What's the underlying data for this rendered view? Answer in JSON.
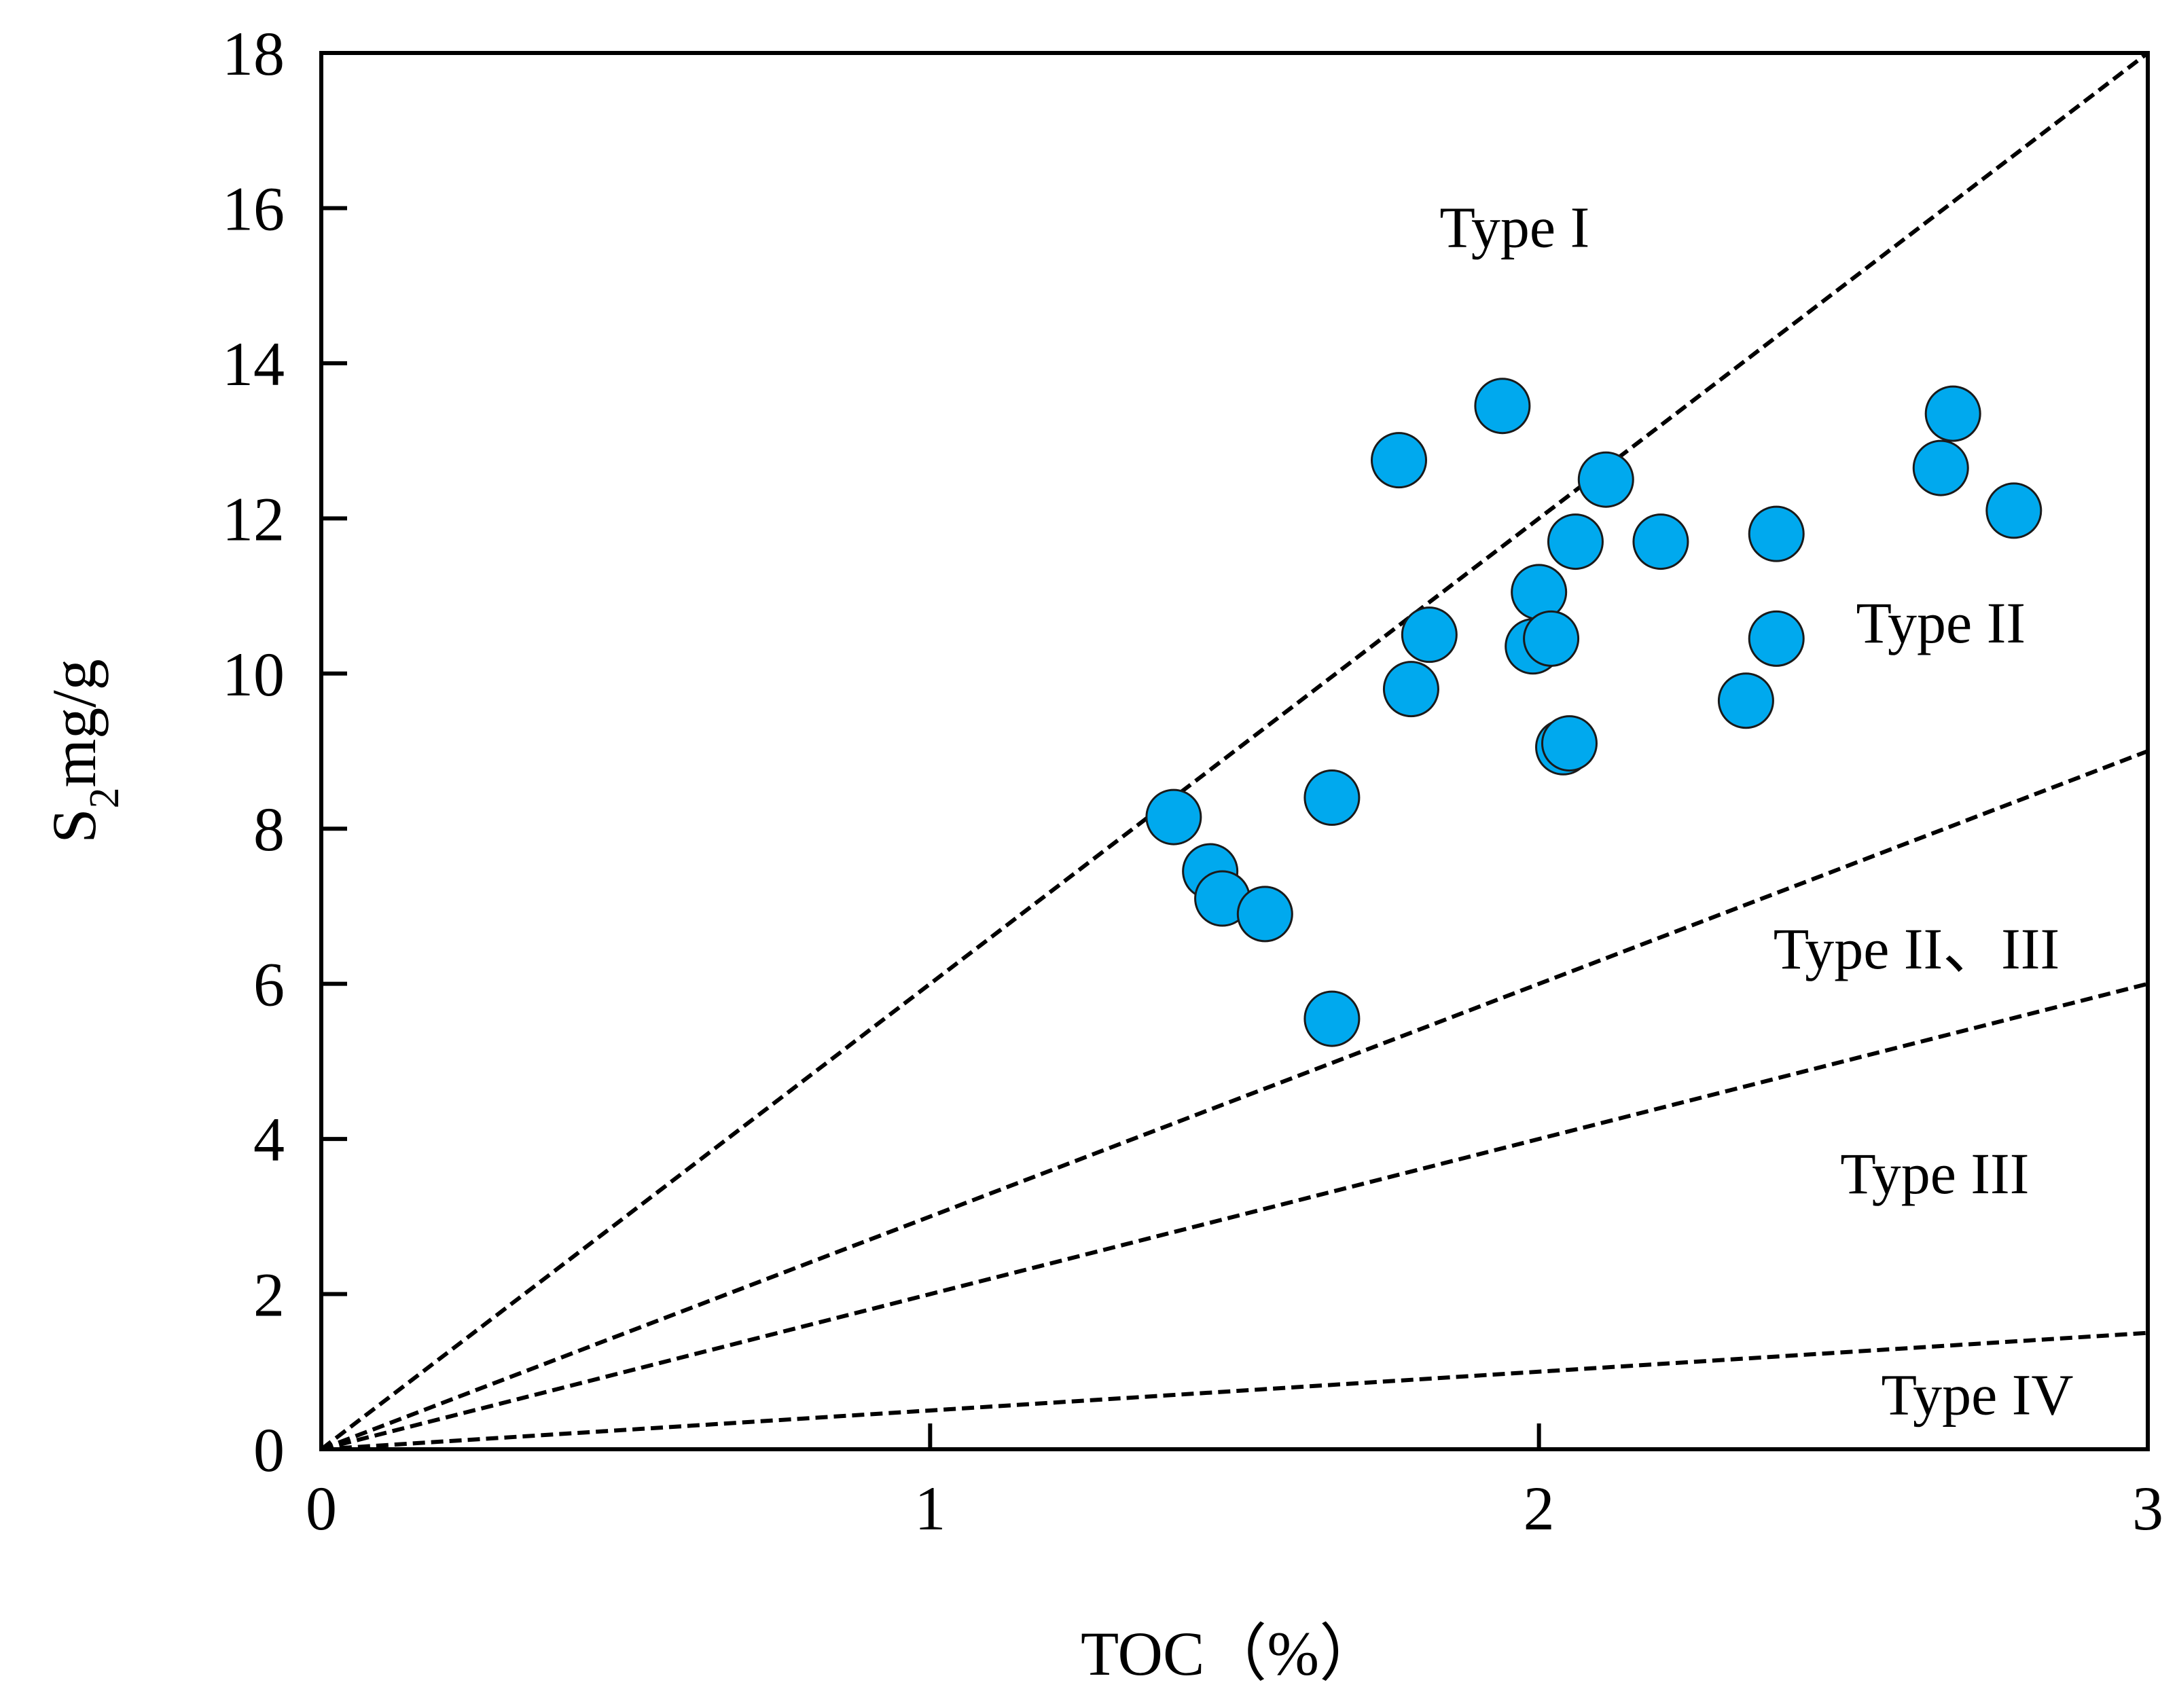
{
  "chart_data": {
    "type": "scatter",
    "title": "",
    "xlabel": "TOC（%）",
    "ylabel": {
      "main": "S",
      "subscript": "2",
      "suffix": "mg/g"
    },
    "xlim": [
      0,
      3
    ],
    "ylim": [
      0,
      18
    ],
    "xticks": [
      "0",
      "1",
      "2",
      "3"
    ],
    "yticks": [
      "0",
      "2",
      "4",
      "6",
      "8",
      "10",
      "12",
      "14",
      "16",
      "18"
    ],
    "grid": false,
    "colors": {
      "point_fill": "#00A9EE",
      "point_stroke": "#1a1a1a",
      "line": "#000000",
      "axis": "#000000"
    },
    "reference_lines": [
      {
        "name": "type-I-II-boundary",
        "slope": 6
      },
      {
        "name": "type-II-II-III-boundary",
        "slope": 3
      },
      {
        "name": "type-II-III-III-boundary",
        "slope": 2
      },
      {
        "name": "type-III-IV-boundary",
        "slope": 0.5
      }
    ],
    "region_labels": [
      {
        "name": "type-i-label",
        "text": "Type I",
        "x": 1.96,
        "y": 15.5
      },
      {
        "name": "type-ii-label",
        "text": "Type II",
        "x": 2.66,
        "y": 10.4
      },
      {
        "name": "type-ii-iii-label",
        "text": "Type II、III",
        "x": 2.62,
        "y": 6.2
      },
      {
        "name": "type-iii-label",
        "text": "Type III",
        "x": 2.65,
        "y": 3.3
      },
      {
        "name": "type-iv-label",
        "text": "Type IV",
        "x": 2.72,
        "y": 0.45
      }
    ],
    "series": [
      {
        "name": "samples",
        "points": [
          {
            "x": 1.4,
            "y": 8.15
          },
          {
            "x": 1.46,
            "y": 7.45
          },
          {
            "x": 1.48,
            "y": 7.1
          },
          {
            "x": 1.55,
            "y": 6.9
          },
          {
            "x": 1.66,
            "y": 8.4
          },
          {
            "x": 1.66,
            "y": 5.55
          },
          {
            "x": 1.77,
            "y": 12.75
          },
          {
            "x": 1.79,
            "y": 9.8
          },
          {
            "x": 1.82,
            "y": 10.5
          },
          {
            "x": 1.94,
            "y": 13.45
          },
          {
            "x": 1.99,
            "y": 10.35
          },
          {
            "x": 2.0,
            "y": 11.05
          },
          {
            "x": 2.02,
            "y": 10.45
          },
          {
            "x": 2.04,
            "y": 9.05
          },
          {
            "x": 2.05,
            "y": 9.1
          },
          {
            "x": 2.06,
            "y": 11.7
          },
          {
            "x": 2.11,
            "y": 12.5
          },
          {
            "x": 2.2,
            "y": 11.7
          },
          {
            "x": 2.34,
            "y": 9.65
          },
          {
            "x": 2.39,
            "y": 11.8
          },
          {
            "x": 2.39,
            "y": 10.45
          },
          {
            "x": 2.66,
            "y": 12.65
          },
          {
            "x": 2.68,
            "y": 13.35
          },
          {
            "x": 2.78,
            "y": 12.1
          }
        ]
      }
    ]
  }
}
